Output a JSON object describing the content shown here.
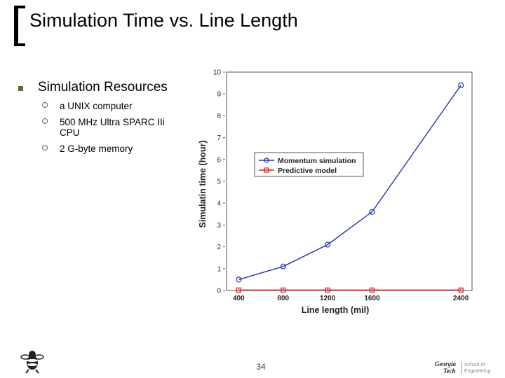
{
  "slide": {
    "title": "Simulation Time vs. Line Length",
    "bullet": "Simulation Resources",
    "sub_bullets": [
      "a UNIX computer",
      "500 MHz Ultra SPARC IIi CPU",
      "2 G-byte memory"
    ],
    "page_number": "34",
    "logo_text": {
      "georgia": "Georgia",
      "tech": "Tech",
      "school": "School of",
      "engineering": "Engineering"
    }
  },
  "chart_data": {
    "type": "line",
    "xlabel": "Line length (mil)",
    "ylabel": "Simulatin time (hour)",
    "x": [
      400,
      800,
      1200,
      1600,
      2400
    ],
    "xlim": [
      290,
      2500
    ],
    "ylim": [
      0,
      10
    ],
    "xticks": [
      "400",
      "800",
      "1200",
      "1600",
      "2400"
    ],
    "yticks": [
      "0",
      "1",
      "2",
      "3",
      "4",
      "5",
      "6",
      "7",
      "8",
      "9",
      "10"
    ],
    "grid": false,
    "legend_position": "center-right",
    "series": [
      {
        "name": "Momentum simulation",
        "values": [
          0.5,
          1.1,
          2.1,
          3.6,
          9.4
        ],
        "color": "#2233aa",
        "marker": "circle"
      },
      {
        "name": "Predictive model",
        "values": [
          0.02,
          0.02,
          0.02,
          0.02,
          0.02
        ],
        "color": "#cc2222",
        "marker": "square"
      }
    ]
  }
}
